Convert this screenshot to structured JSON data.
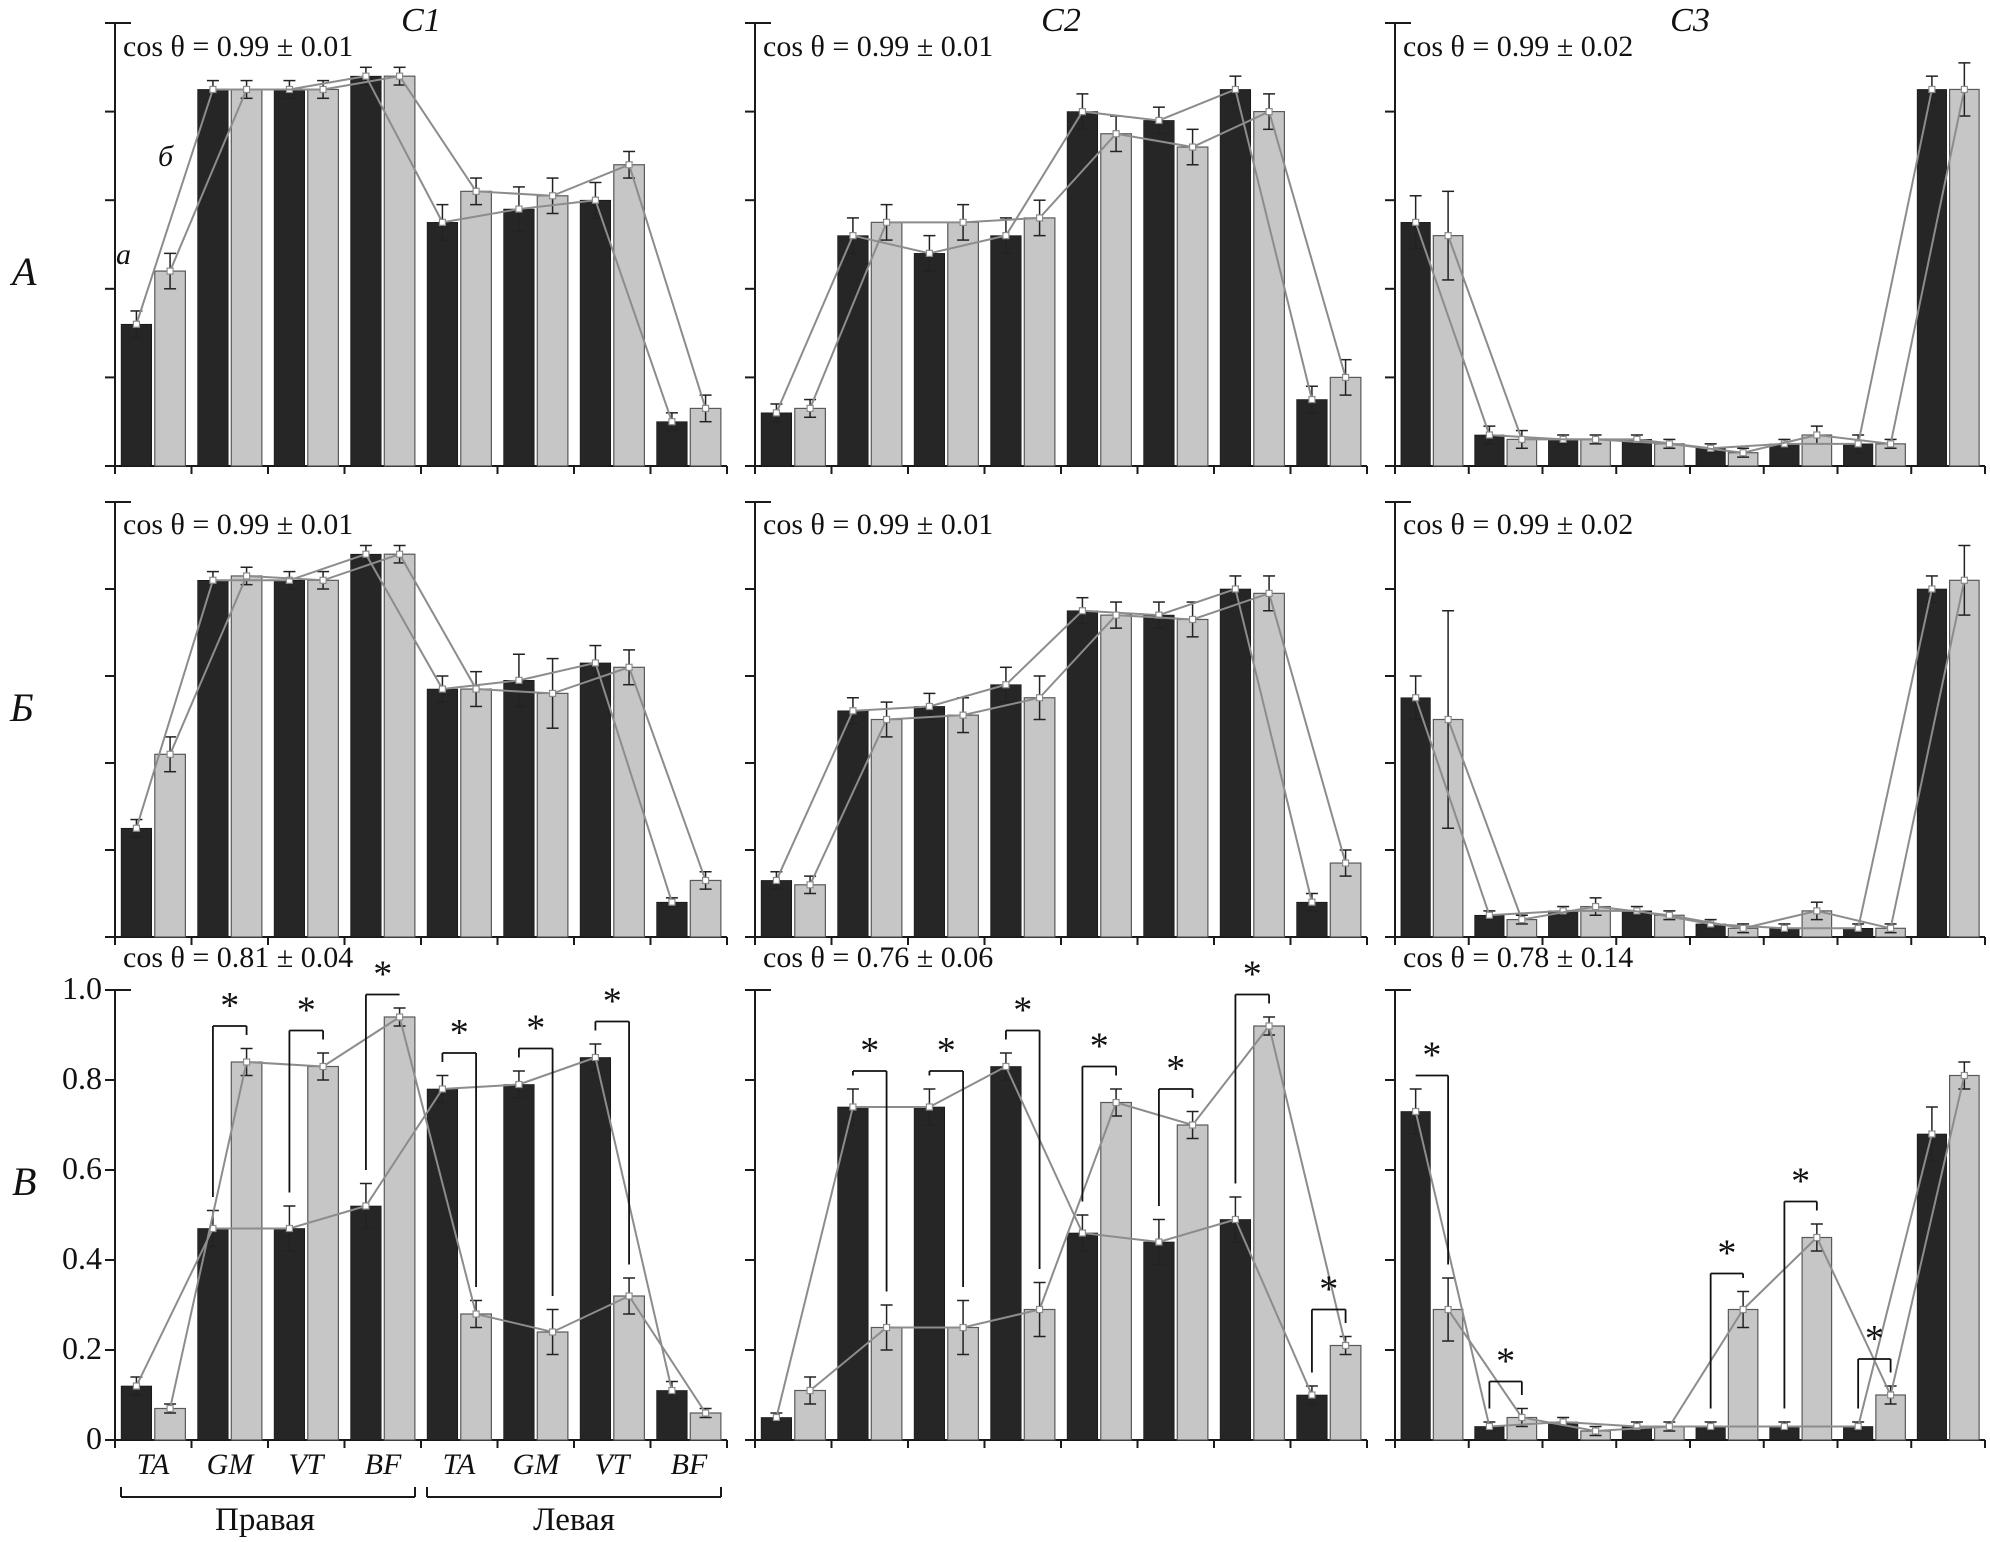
{
  "figure": {
    "col_titles": [
      "C1",
      "C2",
      "C3"
    ],
    "row_labels": [
      "А",
      "Б",
      "В"
    ],
    "bar_series_labels": {
      "dark": "а",
      "light": "б"
    },
    "sig_marker": "*",
    "x_axis": {
      "muscles": [
        "TA",
        "GM",
        "VT",
        "BF",
        "TA",
        "GM",
        "VT",
        "BF"
      ],
      "group_labels": [
        "Правая",
        "Левая"
      ]
    },
    "y_axis": {
      "ticks": [
        "1.0",
        "0.8",
        "0.6",
        "0.4",
        "0.2",
        "0"
      ],
      "range": [
        0,
        1
      ]
    },
    "colors": {
      "dark_bar": "#262626",
      "light_bar": "#c6c6c6",
      "light_bar_border": "#595959",
      "line": "#8c8c8c",
      "axis": "#1a1a1a",
      "error_bar": "#222222",
      "sig": "#111111"
    }
  },
  "chart_data": [
    {
      "panel": "А-C1",
      "type": "bar",
      "annotation": "cos θ = 0.99 ± 0.01",
      "categories": [
        "TA",
        "GM",
        "VT",
        "BF",
        "TA",
        "GM",
        "VT",
        "BF"
      ],
      "ylim": [
        0,
        1
      ],
      "series": [
        {
          "name": "а",
          "values": [
            0.32,
            0.85,
            0.85,
            0.88,
            0.55,
            0.58,
            0.6,
            0.1
          ],
          "err": [
            0.03,
            0.02,
            0.02,
            0.02,
            0.04,
            0.05,
            0.04,
            0.02
          ]
        },
        {
          "name": "б",
          "values": [
            0.44,
            0.85,
            0.85,
            0.88,
            0.62,
            0.61,
            0.68,
            0.13
          ],
          "err": [
            0.04,
            0.02,
            0.02,
            0.02,
            0.03,
            0.04,
            0.03,
            0.03
          ]
        }
      ],
      "significant_pairs": []
    },
    {
      "panel": "А-C2",
      "type": "bar",
      "annotation": "cos θ = 0.99 ± 0.01",
      "categories": [
        "TA",
        "GM",
        "VT",
        "BF",
        "TA",
        "GM",
        "VT",
        "BF"
      ],
      "ylim": [
        0,
        1
      ],
      "series": [
        {
          "name": "а",
          "values": [
            0.12,
            0.52,
            0.48,
            0.52,
            0.8,
            0.78,
            0.85,
            0.15
          ],
          "err": [
            0.02,
            0.04,
            0.04,
            0.04,
            0.04,
            0.03,
            0.03,
            0.03
          ]
        },
        {
          "name": "б",
          "values": [
            0.13,
            0.55,
            0.55,
            0.56,
            0.75,
            0.72,
            0.8,
            0.2
          ],
          "err": [
            0.02,
            0.04,
            0.04,
            0.04,
            0.04,
            0.04,
            0.04,
            0.04
          ]
        }
      ],
      "significant_pairs": []
    },
    {
      "panel": "А-C3",
      "type": "bar",
      "annotation": "cos θ = 0.99 ± 0.02",
      "categories": [
        "TA",
        "GM",
        "VT",
        "BF",
        "TA",
        "GM",
        "VT",
        "BF"
      ],
      "ylim": [
        0,
        1
      ],
      "series": [
        {
          "name": "а",
          "values": [
            0.55,
            0.07,
            0.06,
            0.06,
            0.04,
            0.05,
            0.05,
            0.85
          ],
          "err": [
            0.06,
            0.02,
            0.01,
            0.01,
            0.01,
            0.01,
            0.02,
            0.03
          ]
        },
        {
          "name": "б",
          "values": [
            0.52,
            0.06,
            0.06,
            0.05,
            0.03,
            0.07,
            0.05,
            0.85
          ],
          "err": [
            0.1,
            0.02,
            0.01,
            0.01,
            0.01,
            0.02,
            0.01,
            0.06
          ]
        }
      ],
      "significant_pairs": []
    },
    {
      "panel": "Б-C1",
      "type": "bar",
      "annotation": "cos θ = 0.99 ± 0.01",
      "categories": [
        "TA",
        "GM",
        "VT",
        "BF",
        "TA",
        "GM",
        "VT",
        "BF"
      ],
      "ylim": [
        0,
        1
      ],
      "series": [
        {
          "name": "а",
          "values": [
            0.25,
            0.82,
            0.82,
            0.88,
            0.57,
            0.59,
            0.63,
            0.08
          ],
          "err": [
            0.02,
            0.02,
            0.02,
            0.02,
            0.03,
            0.06,
            0.04,
            0.01
          ]
        },
        {
          "name": "б",
          "values": [
            0.42,
            0.83,
            0.82,
            0.88,
            0.57,
            0.56,
            0.62,
            0.13
          ],
          "err": [
            0.04,
            0.02,
            0.02,
            0.02,
            0.04,
            0.08,
            0.04,
            0.02
          ]
        }
      ],
      "significant_pairs": []
    },
    {
      "panel": "Б-C2",
      "type": "bar",
      "annotation": "cos θ = 0.99 ± 0.01",
      "categories": [
        "TA",
        "GM",
        "VT",
        "BF",
        "TA",
        "GM",
        "VT",
        "BF"
      ],
      "ylim": [
        0,
        1
      ],
      "series": [
        {
          "name": "а",
          "values": [
            0.13,
            0.52,
            0.53,
            0.58,
            0.75,
            0.74,
            0.8,
            0.08
          ],
          "err": [
            0.02,
            0.03,
            0.03,
            0.04,
            0.03,
            0.03,
            0.03,
            0.02
          ]
        },
        {
          "name": "б",
          "values": [
            0.12,
            0.5,
            0.51,
            0.55,
            0.74,
            0.73,
            0.79,
            0.17
          ],
          "err": [
            0.02,
            0.04,
            0.04,
            0.05,
            0.03,
            0.04,
            0.04,
            0.03
          ]
        }
      ],
      "significant_pairs": []
    },
    {
      "panel": "Б-C3",
      "type": "bar",
      "annotation": "cos θ = 0.99 ± 0.02",
      "categories": [
        "TA",
        "GM",
        "VT",
        "BF",
        "TA",
        "GM",
        "VT",
        "BF"
      ],
      "ylim": [
        0,
        1
      ],
      "series": [
        {
          "name": "а",
          "values": [
            0.55,
            0.05,
            0.06,
            0.06,
            0.03,
            0.02,
            0.02,
            0.8
          ],
          "err": [
            0.05,
            0.01,
            0.01,
            0.01,
            0.01,
            0.01,
            0.01,
            0.03
          ]
        },
        {
          "name": "б",
          "values": [
            0.5,
            0.04,
            0.07,
            0.05,
            0.02,
            0.06,
            0.02,
            0.82
          ],
          "err": [
            0.25,
            0.01,
            0.02,
            0.01,
            0.01,
            0.02,
            0.01,
            0.08
          ]
        }
      ],
      "significant_pairs": []
    },
    {
      "panel": "В-C1",
      "type": "bar",
      "annotation": "cos θ = 0.81 ± 0.04",
      "categories": [
        "TA",
        "GM",
        "VT",
        "BF",
        "TA",
        "GM",
        "VT",
        "BF"
      ],
      "ylim": [
        0,
        1
      ],
      "series": [
        {
          "name": "а",
          "values": [
            0.12,
            0.47,
            0.47,
            0.52,
            0.78,
            0.79,
            0.85,
            0.11
          ],
          "err": [
            0.02,
            0.04,
            0.05,
            0.05,
            0.03,
            0.03,
            0.03,
            0.02
          ]
        },
        {
          "name": "б",
          "values": [
            0.07,
            0.84,
            0.83,
            0.94,
            0.28,
            0.24,
            0.32,
            0.06
          ],
          "err": [
            0.01,
            0.03,
            0.03,
            0.02,
            0.03,
            0.05,
            0.04,
            0.01
          ]
        }
      ],
      "significant_pairs": [
        1,
        2,
        3,
        4,
        5,
        6
      ]
    },
    {
      "panel": "В-C2",
      "type": "bar",
      "annotation": "cos θ = 0.76 ± 0.06",
      "categories": [
        "TA",
        "GM",
        "VT",
        "BF",
        "TA",
        "GM",
        "VT",
        "BF"
      ],
      "ylim": [
        0,
        1
      ],
      "series": [
        {
          "name": "а",
          "values": [
            0.05,
            0.74,
            0.74,
            0.83,
            0.46,
            0.44,
            0.49,
            0.1
          ],
          "err": [
            0.01,
            0.04,
            0.04,
            0.03,
            0.04,
            0.05,
            0.05,
            0.02
          ]
        },
        {
          "name": "б",
          "values": [
            0.11,
            0.25,
            0.25,
            0.29,
            0.75,
            0.7,
            0.92,
            0.21
          ],
          "err": [
            0.03,
            0.05,
            0.06,
            0.06,
            0.03,
            0.03,
            0.02,
            0.02
          ]
        }
      ],
      "significant_pairs": [
        1,
        2,
        3,
        4,
        5,
        6,
        7
      ]
    },
    {
      "panel": "В-C3",
      "type": "bar",
      "annotation": "cos θ = 0.78 ± 0.14",
      "categories": [
        "TA",
        "GM",
        "VT",
        "BF",
        "TA",
        "GM",
        "VT",
        "BF"
      ],
      "ylim": [
        0,
        1
      ],
      "series": [
        {
          "name": "а",
          "values": [
            0.73,
            0.03,
            0.04,
            0.03,
            0.03,
            0.03,
            0.03,
            0.68
          ],
          "err": [
            0.05,
            0.01,
            0.01,
            0.01,
            0.01,
            0.01,
            0.01,
            0.06
          ]
        },
        {
          "name": "б",
          "values": [
            0.29,
            0.05,
            0.02,
            0.03,
            0.29,
            0.45,
            0.1,
            0.81
          ],
          "err": [
            0.07,
            0.02,
            0.01,
            0.01,
            0.04,
            0.03,
            0.02,
            0.03
          ]
        }
      ],
      "significant_pairs": [
        0,
        1,
        4,
        5,
        6
      ]
    }
  ]
}
